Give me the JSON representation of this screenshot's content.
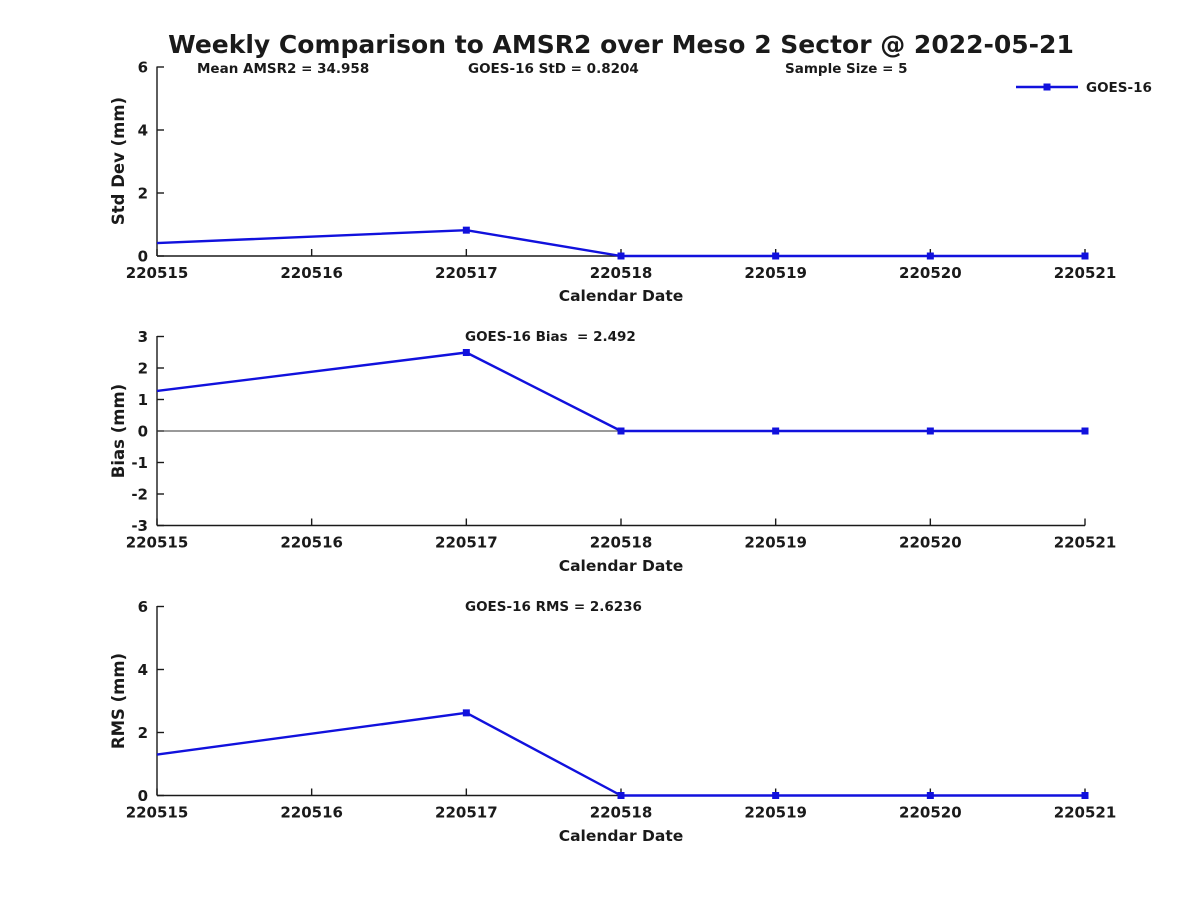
{
  "figure": {
    "background": "#ffffff"
  },
  "colors": {
    "line": "#1111dd",
    "axis": "#1a1a1a",
    "text": "#1a1a1a",
    "zero_line": "#333333"
  },
  "chart_data": {
    "type": "line",
    "title": "Weekly Comparison to AMSR2 over Meso 2 Sector @ 2022-05-21",
    "xlabel": "Calendar Date",
    "x_tick_labels": [
      "220515",
      "220516",
      "220517",
      "220518",
      "220519",
      "220520",
      "220521"
    ],
    "grid": false,
    "legend": {
      "label": "GOES-16",
      "position": "top-right",
      "marker": "filled-square"
    },
    "plots": [
      {
        "id": "std-dev",
        "ylabel": "Std Dev (mm)",
        "ylim": [
          0,
          6
        ],
        "yticks": [
          0,
          2,
          4,
          6
        ],
        "zero_line": false,
        "annotations": [
          "Mean AMSR2 = 34.958",
          "GOES-16 StD = 0.8204",
          "Sample Size = 5"
        ],
        "series": [
          {
            "name": "GOES-16",
            "points": [
              {
                "x": "220515",
                "y": 0.41,
                "marker": false
              },
              {
                "x": "220517",
                "y": 0.8204,
                "marker": true
              },
              {
                "x": "220518",
                "y": 0,
                "marker": true
              },
              {
                "x": "220519",
                "y": 0,
                "marker": true
              },
              {
                "x": "220520",
                "y": 0,
                "marker": true
              },
              {
                "x": "220521",
                "y": 0,
                "marker": true
              }
            ]
          }
        ]
      },
      {
        "id": "bias",
        "ylabel": "Bias (mm)",
        "ylim": [
          -3,
          3
        ],
        "yticks": [
          3,
          2,
          1,
          0,
          -1,
          -2,
          -3
        ],
        "zero_line": true,
        "annotations": [
          "GOES-16 Bias  = 2.492"
        ],
        "series": [
          {
            "name": "GOES-16",
            "points": [
              {
                "x": "220515",
                "y": 1.27,
                "marker": false
              },
              {
                "x": "220517",
                "y": 2.492,
                "marker": true
              },
              {
                "x": "220518",
                "y": 0,
                "marker": true
              },
              {
                "x": "220519",
                "y": 0,
                "marker": true
              },
              {
                "x": "220520",
                "y": 0,
                "marker": true
              },
              {
                "x": "220521",
                "y": 0,
                "marker": true
              }
            ]
          }
        ]
      },
      {
        "id": "rms",
        "ylabel": "RMS (mm)",
        "ylim": [
          0,
          6
        ],
        "yticks": [
          0,
          2,
          4,
          6
        ],
        "zero_line": false,
        "annotations": [
          "GOES-16 RMS = 2.6236"
        ],
        "series": [
          {
            "name": "GOES-16",
            "points": [
              {
                "x": "220515",
                "y": 1.3,
                "marker": false
              },
              {
                "x": "220517",
                "y": 2.6236,
                "marker": true
              },
              {
                "x": "220518",
                "y": 0,
                "marker": true
              },
              {
                "x": "220519",
                "y": 0,
                "marker": true
              },
              {
                "x": "220520",
                "y": 0,
                "marker": true
              },
              {
                "x": "220521",
                "y": 0,
                "marker": true
              }
            ]
          }
        ]
      }
    ]
  }
}
